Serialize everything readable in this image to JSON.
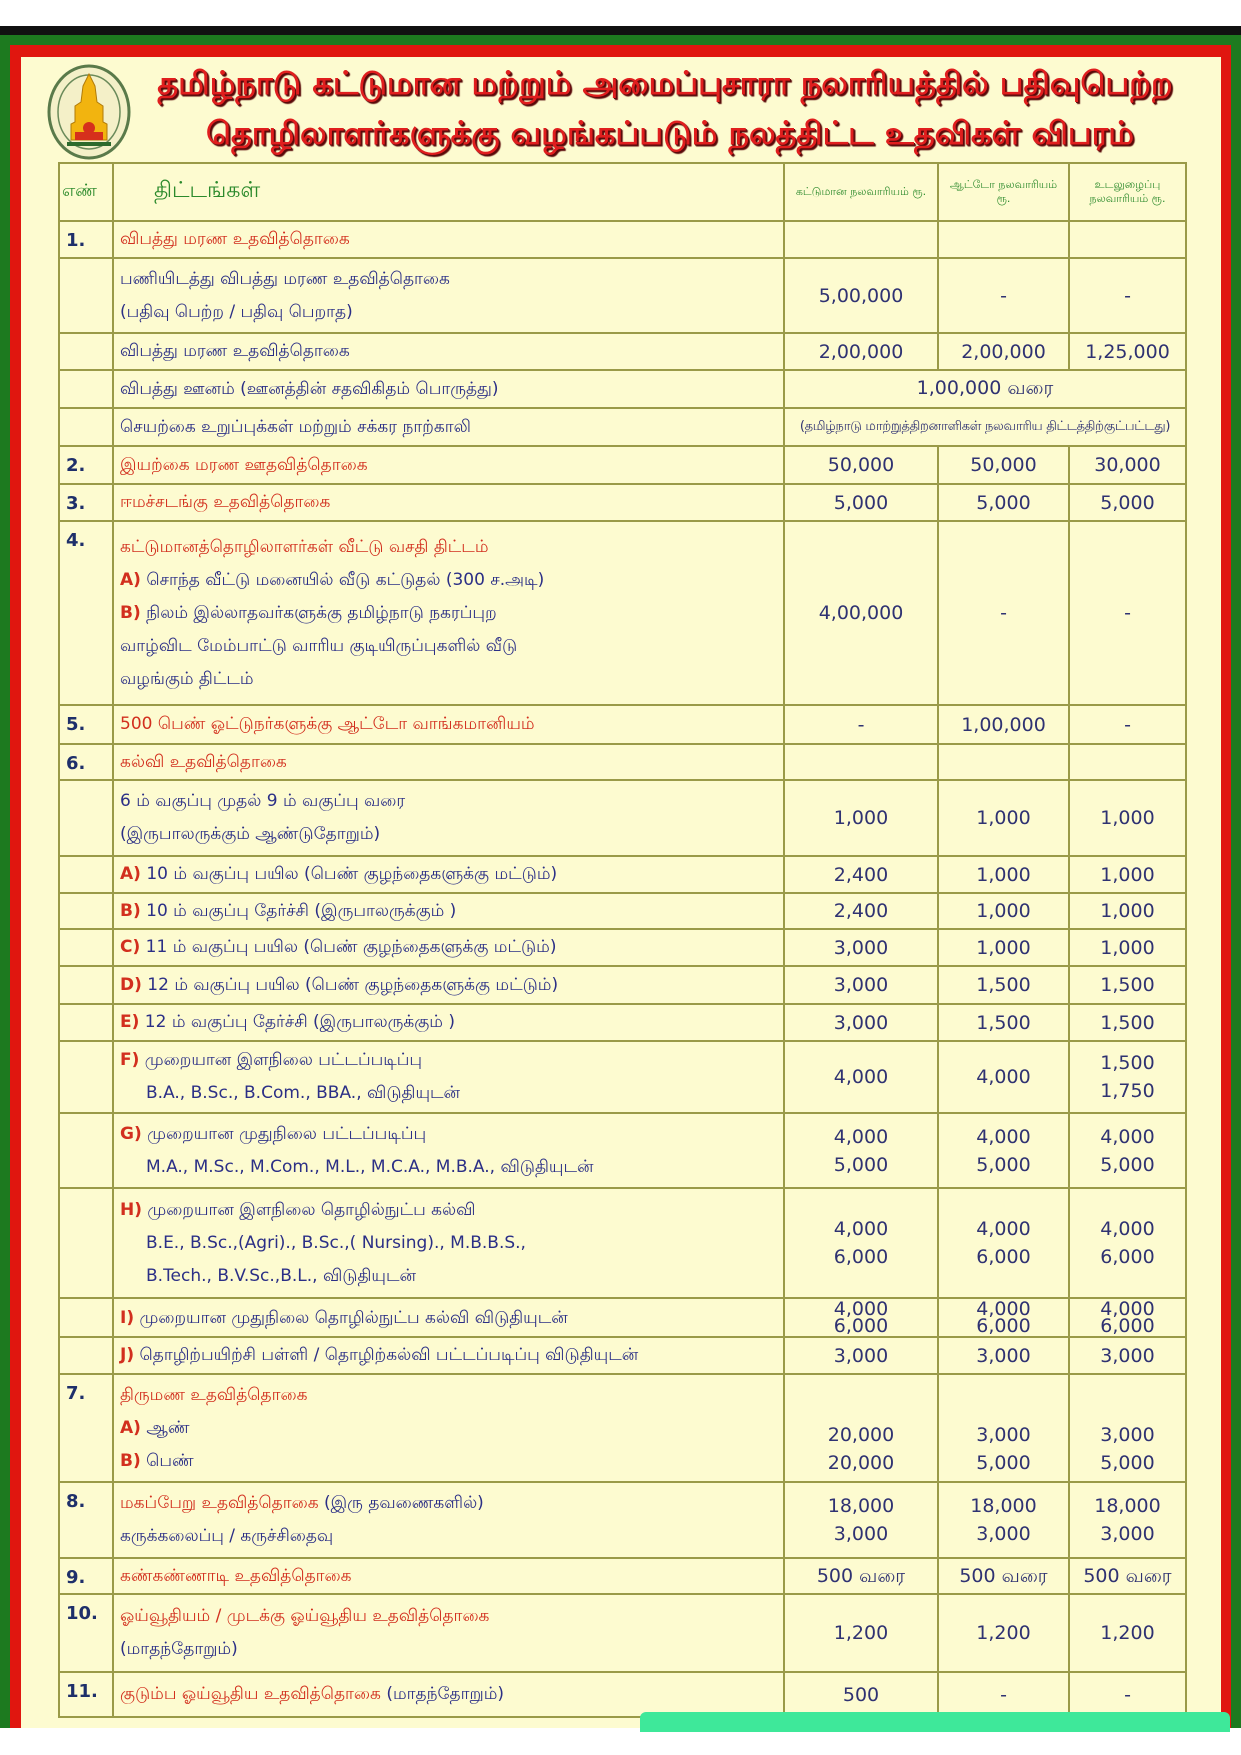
{
  "title": {
    "line1": "தமிழ்நாடு கட்டுமான மற்றும் அமைப்புசாரா நலாரியத்தில் பதிவுபெற்ற",
    "line2": "தொழிலாளர்களுக்கு வழங்கப்படும் நலத்திட்ட உதவிகள் விபரம்"
  },
  "emblem": {
    "icon": "tamil-nadu-government-emblem",
    "colors": [
      "#f2b40f",
      "#d6301c",
      "#2c6a2c"
    ]
  },
  "colors": {
    "frame_green": "#1d7a1f",
    "frame_red": "#e0160f",
    "background": "#fdfbd0",
    "title_red": "#e01e1e",
    "item_red": "#d22f1e",
    "item_blue": "#2b2f86",
    "header_green": "#2c8a2c"
  },
  "table": {
    "headers": {
      "num": "எண்",
      "scheme": "திட்டங்கள்",
      "col1": "கட்டுமான நலவாரியம் ரூ.",
      "col2": "ஆட்டோ நலவாரியம் ரூ.",
      "col3": "உடலுழைப்பு நலவாரியம் ரூ."
    },
    "rows": [
      {
        "num": "1.",
        "lines": [
          {
            "text": "விபத்து மரண உதவித்தொகை",
            "color": "red"
          }
        ],
        "values": [
          "",
          "",
          ""
        ]
      },
      {
        "num": "",
        "lines": [
          {
            "text": "பணியிடத்து விபத்து மரண உதவித்தொகை",
            "color": "blue"
          },
          {
            "text": "(பதிவு பெற்ற / பதிவு பெறாத)",
            "color": "blue"
          }
        ],
        "values": [
          "5,00,000",
          "-",
          "-"
        ]
      },
      {
        "num": "",
        "lines": [
          {
            "text": "விபத்து மரண உதவித்தொகை",
            "color": "blue"
          }
        ],
        "values": [
          "2,00,000",
          "2,00,000",
          "1,25,000"
        ]
      },
      {
        "num": "",
        "lines": [
          {
            "text": "விபத்து ஊனம் (ஊனத்தின் சதவிகிதம் பொருத்து)",
            "color": "blue"
          }
        ],
        "span": "1,00,000 வரை"
      },
      {
        "num": "",
        "lines": [
          {
            "text": "செயற்கை உறுப்புக்கள் மற்றும் சக்கர நாற்காலி",
            "color": "blue"
          }
        ],
        "span": "(தமிழ்நாடு மாற்றுத்திறனாளிகள் நலவாரிய திட்டத்திற்குட்பட்டது)",
        "span_small": true
      },
      {
        "num": "2.",
        "lines": [
          {
            "text": "இயற்கை மரண ஊதவித்தொகை",
            "color": "red"
          }
        ],
        "values": [
          "50,000",
          "50,000",
          "30,000"
        ]
      },
      {
        "num": "3.",
        "lines": [
          {
            "text": "ஈமச்சடங்கு உதவித்தொகை",
            "color": "red"
          }
        ],
        "values": [
          "5,000",
          "5,000",
          "5,000"
        ]
      },
      {
        "num": "4.",
        "lines": [
          {
            "text": "கட்டுமானத்தொழிலாளர்கள் வீட்டு வசதி திட்டம்",
            "color": "red"
          },
          {
            "prefix": "A)",
            "text": "சொந்த வீட்டு மனையில் வீடு கட்டுதல் (300 ச.அடி)",
            "color": "blue"
          },
          {
            "prefix": "B)",
            "text": "நிலம் இல்லாதவர்களுக்கு தமிழ்நாடு நகரப்புற",
            "color": "blue"
          },
          {
            "text": "வாழ்விட மேம்பாட்டு வாரிய குடியிருப்புகளில் வீடு",
            "color": "blue"
          },
          {
            "text": "வழங்கும் திட்டம்",
            "color": "blue"
          }
        ],
        "values": [
          "4,00,000",
          "-",
          "-"
        ]
      },
      {
        "num": "5.",
        "lines": [
          {
            "text": "500 பெண் ஓட்டுநர்களுக்கு ஆட்டோ வாங்கமானியம்",
            "color": "red"
          }
        ],
        "values": [
          "-",
          "1,00,000",
          "-"
        ]
      },
      {
        "num": "6.",
        "lines": [
          {
            "text": "கல்வி உதவித்தொகை",
            "color": "red"
          }
        ],
        "values": [
          "",
          "",
          ""
        ]
      },
      {
        "num": "",
        "lines": [
          {
            "text": "6 ம் வகுப்பு முதல் 9 ம் வகுப்பு வரை",
            "color": "blue"
          },
          {
            "text": "(இருபாலருக்கும் ஆண்டுதோறும்)",
            "color": "blue"
          }
        ],
        "values": [
          "1,000",
          "1,000",
          "1,000"
        ]
      },
      {
        "num": "",
        "lines": [
          {
            "prefix": "A)",
            "text": "10 ம் வகுப்பு பயில (பெண் குழந்தைகளுக்கு மட்டும்)",
            "color": "blue"
          }
        ],
        "values": [
          "2,400",
          "1,000",
          "1,000"
        ]
      },
      {
        "num": "",
        "lines": [
          {
            "prefix": "B)",
            "text": "10 ம் வகுப்பு தேர்ச்சி (இருபாலருக்கும் )",
            "color": "blue"
          }
        ],
        "values": [
          "2,400",
          "1,000",
          "1,000"
        ]
      },
      {
        "num": "",
        "lines": [
          {
            "prefix": "C)",
            "text": "11 ம் வகுப்பு பயில (பெண் குழந்தைகளுக்கு மட்டும்)",
            "color": "blue"
          }
        ],
        "values": [
          "3,000",
          "1,000",
          "1,000"
        ]
      },
      {
        "num": "",
        "lines": [
          {
            "prefix": "D)",
            "text": "12 ம் வகுப்பு பயில (பெண் குழந்தைகளுக்கு மட்டும்)",
            "color": "blue"
          }
        ],
        "values": [
          "3,000",
          "1,500",
          "1,500"
        ]
      },
      {
        "num": "",
        "lines": [
          {
            "prefix": "E)",
            "text": "12 ம் வகுப்பு தேர்ச்சி (இருபாலருக்கும் )",
            "color": "blue"
          }
        ],
        "values": [
          "3,000",
          "1,500",
          "1,500"
        ]
      },
      {
        "num": "",
        "lines": [
          {
            "prefix": "F)",
            "text": "முறையான இளநிலை பட்டப்படிப்பு",
            "color": "blue"
          },
          {
            "text": "B.A., B.Sc., B.Com., BBA., விடுதியுடன்",
            "color": "blue",
            "indent": true
          }
        ],
        "values": [
          "4,000",
          "4,000",
          "1,500\n1,750"
        ]
      },
      {
        "num": "",
        "lines": [
          {
            "prefix": "G)",
            "text": "முறையான முதுநிலை பட்டப்படிப்பு",
            "color": "blue"
          },
          {
            "text": "M.A., M.Sc., M.Com., M.L., M.C.A., M.B.A., விடுதியுடன்",
            "color": "blue",
            "indent": true
          }
        ],
        "values": [
          "4,000\n5,000",
          "4,000\n5,000",
          "4,000\n5,000"
        ]
      },
      {
        "num": "",
        "lines": [
          {
            "prefix": "H)",
            "text": "முறையான இளநிலை தொழில்நுட்ப கல்வி",
            "color": "blue"
          },
          {
            "text": "B.E., B.Sc.,(Agri)., B.Sc.,( Nursing)., M.B.B.S.,",
            "color": "blue",
            "indent": true
          },
          {
            "text": "B.Tech., B.V.Sc.,B.L., விடுதியுடன்",
            "color": "blue",
            "indent": true
          }
        ],
        "values": [
          "4,000\n6,000",
          "4,000\n6,000",
          "4,000\n6,000"
        ]
      },
      {
        "num": "",
        "lines": [
          {
            "prefix": "I)",
            "text": "முறையான முதுநிலை தொழில்நுட்ப கல்வி விடுதியுடன்",
            "color": "blue"
          }
        ],
        "values": [
          "4,000\n6,000",
          "4,000\n6,000",
          "4,000\n6,000"
        ],
        "tight": true
      },
      {
        "num": "",
        "lines": [
          {
            "prefix": "J)",
            "text": "தொழிற்பயிற்சி பள்ளி / தொழிற்கல்வி பட்டப்படிப்பு விடுதியுடன்",
            "color": "blue"
          }
        ],
        "values": [
          "3,000",
          "3,000",
          "3,000"
        ]
      },
      {
        "num": "7.",
        "lines": [
          {
            "text": "திருமண உதவித்தொகை",
            "color": "red"
          },
          {
            "prefix": "A)",
            "text": "ஆண்",
            "color": "blue"
          },
          {
            "prefix": "B)",
            "text": "பெண்",
            "color": "blue"
          }
        ],
        "values": [
          "20,000\n20,000",
          "3,000\n5,000",
          "3,000\n5,000"
        ],
        "valign": "bottom"
      },
      {
        "num": "8.",
        "lines": [
          {
            "text": "மகப்பேறு உதவித்தொகை",
            "color": "red"
          },
          {
            "text": "கருக்கலைப்பு / கருச்சிதைவு",
            "color": "blue"
          }
        ],
        "suffix_first": "(இரு தவணைகளில்)",
        "values": [
          "18,000\n3,000",
          "18,000\n3,000",
          "18,000\n3,000"
        ]
      },
      {
        "num": "9.",
        "lines": [
          {
            "text": "கண்கண்ணாடி உதவித்தொகை",
            "color": "red"
          }
        ],
        "values": [
          "500 வரை",
          "500 வரை",
          "500 வரை"
        ]
      },
      {
        "num": "10.",
        "lines": [
          {
            "text": "ஓய்வூதியம் / முடக்கு ஓய்வூதிய உதவித்தொகை",
            "color": "red"
          },
          {
            "text": "(மாதந்தோறும்)",
            "color": "blue"
          }
        ],
        "values": [
          "1,200",
          "1,200",
          "1,200"
        ]
      },
      {
        "num": "11.",
        "lines": [
          {
            "text": "குடும்ப ஓய்வூதிய உதவித்தொகை",
            "color": "red"
          }
        ],
        "suffix_first": "(மாதந்தோறும்)",
        "values": [
          "500",
          "-",
          "-"
        ]
      }
    ]
  }
}
